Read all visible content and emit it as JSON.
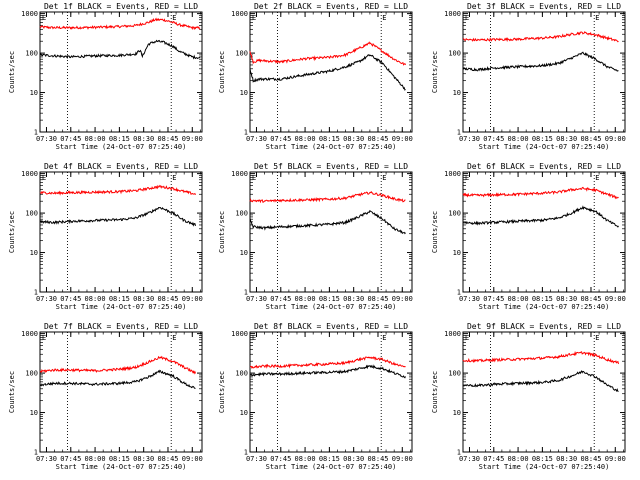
{
  "chart_data": [
    {
      "type": "line",
      "title": "Det 1f BLACK = Events, RED = LLD",
      "xlabel": "Start Time (24-Oct-07 07:25:40)",
      "ylabel": "Counts/sec",
      "x_ticks": [
        "07:30",
        "07:45",
        "08:00",
        "08:15",
        "08:30",
        "08:45",
        "09:00"
      ],
      "y_ticks": [
        "1",
        "10",
        "100",
        "1000"
      ],
      "ylim": [
        1,
        1100
      ],
      "yscale": "log",
      "annotation": "E",
      "vlines": [
        "07:43",
        "08:47"
      ],
      "series": [
        {
          "name": "LLD",
          "color": "#ff0000",
          "x": [
            "07:26",
            "07:35",
            "07:45",
            "08:00",
            "08:15",
            "08:25",
            "08:33",
            "08:37",
            "08:42",
            "08:48",
            "08:52",
            "09:00",
            "09:05"
          ],
          "y": [
            460,
            440,
            440,
            450,
            470,
            500,
            600,
            700,
            700,
            600,
            520,
            440,
            430
          ]
        },
        {
          "name": "Events",
          "color": "#000000",
          "x": [
            "07:26",
            "07:35",
            "07:45",
            "08:00",
            "08:15",
            "08:25",
            "08:28",
            "08:29",
            "08:33",
            "08:38",
            "08:42",
            "08:48",
            "08:52",
            "09:00",
            "09:05"
          ],
          "y": [
            90,
            85,
            80,
            85,
            88,
            95,
            120,
            80,
            170,
            200,
            190,
            150,
            110,
            80,
            75
          ]
        }
      ]
    },
    {
      "type": "line",
      "title": "Det 2f BLACK = Events, RED = LLD",
      "xlabel": "Start Time (24-Oct-07 07:25:40)",
      "ylabel": "Counts/sec",
      "x_ticks": [
        "07:30",
        "07:45",
        "08:00",
        "08:15",
        "08:30",
        "08:45",
        "09:00"
      ],
      "y_ticks": [
        "1",
        "10",
        "100",
        "1000"
      ],
      "ylim": [
        1,
        1100
      ],
      "yscale": "log",
      "annotation": "E",
      "vlines": [
        "07:43",
        "08:47"
      ],
      "series": [
        {
          "name": "LLD",
          "color": "#ff0000",
          "x": [
            "07:26",
            "07:28",
            "07:32",
            "07:45",
            "08:00",
            "08:15",
            "08:25",
            "08:33",
            "08:40",
            "08:48",
            "08:55",
            "09:02"
          ],
          "y": [
            110,
            60,
            65,
            60,
            72,
            78,
            90,
            130,
            180,
            110,
            70,
            50
          ]
        },
        {
          "name": "Events",
          "color": "#000000",
          "x": [
            "07:26",
            "07:28",
            "07:32",
            "07:45",
            "08:00",
            "08:15",
            "08:25",
            "08:33",
            "08:40",
            "08:48",
            "08:55",
            "09:02"
          ],
          "y": [
            40,
            20,
            22,
            22,
            28,
            35,
            45,
            60,
            90,
            55,
            25,
            12
          ]
        }
      ]
    },
    {
      "type": "line",
      "title": "Det 3f BLACK = Events, RED = LLD",
      "xlabel": "Start Time (24-Oct-07 07:25:40)",
      "ylabel": "Counts/sec",
      "x_ticks": [
        "07:30",
        "07:45",
        "08:00",
        "08:15",
        "08:30",
        "08:45",
        "09:00"
      ],
      "y_ticks": [
        "1",
        "10",
        "100",
        "1000"
      ],
      "ylim": [
        1,
        1100
      ],
      "yscale": "log",
      "annotation": "E",
      "vlines": [
        "07:43",
        "08:47"
      ],
      "series": [
        {
          "name": "LLD",
          "color": "#ff0000",
          "x": [
            "07:26",
            "07:35",
            "07:45",
            "08:00",
            "08:15",
            "08:25",
            "08:33",
            "08:40",
            "08:48",
            "08:55",
            "09:02"
          ],
          "y": [
            220,
            215,
            220,
            225,
            240,
            260,
            300,
            330,
            290,
            240,
            200
          ]
        },
        {
          "name": "Events",
          "color": "#000000",
          "x": [
            "07:26",
            "07:35",
            "07:45",
            "08:00",
            "08:15",
            "08:25",
            "08:33",
            "08:40",
            "08:48",
            "08:55",
            "09:02"
          ],
          "y": [
            40,
            38,
            42,
            45,
            48,
            55,
            75,
            100,
            70,
            45,
            35
          ]
        }
      ]
    },
    {
      "type": "line",
      "title": "Det 4f BLACK = Events, RED = LLD",
      "xlabel": "Start Time (24-Oct-07 07:25:40)",
      "ylabel": "Counts/sec",
      "x_ticks": [
        "07:30",
        "07:45",
        "08:00",
        "08:15",
        "08:30",
        "08:45",
        "09:00"
      ],
      "y_ticks": [
        "1",
        "10",
        "100",
        "1000"
      ],
      "ylim": [
        1,
        1100
      ],
      "yscale": "log",
      "annotation": "E",
      "vlines": [
        "07:43",
        "08:47"
      ],
      "series": [
        {
          "name": "LLD",
          "color": "#ff0000",
          "x": [
            "07:26",
            "07:35",
            "07:45",
            "08:00",
            "08:15",
            "08:25",
            "08:33",
            "08:40",
            "08:48",
            "08:55",
            "09:02"
          ],
          "y": [
            330,
            320,
            330,
            340,
            350,
            370,
            420,
            470,
            420,
            350,
            300
          ]
        },
        {
          "name": "Events",
          "color": "#000000",
          "x": [
            "07:26",
            "07:35",
            "07:45",
            "08:00",
            "08:15",
            "08:25",
            "08:33",
            "08:40",
            "08:48",
            "08:55",
            "09:02"
          ],
          "y": [
            60,
            58,
            62,
            65,
            68,
            75,
            100,
            140,
            100,
            65,
            50
          ]
        }
      ]
    },
    {
      "type": "line",
      "title": "Det 5f BLACK = Events, RED = LLD",
      "xlabel": "Start Time (24-Oct-07 07:25:40)",
      "ylabel": "Counts/sec",
      "x_ticks": [
        "07:30",
        "07:45",
        "08:00",
        "08:15",
        "08:30",
        "08:45",
        "09:00"
      ],
      "y_ticks": [
        "1",
        "10",
        "100",
        "1000"
      ],
      "ylim": [
        1,
        1100
      ],
      "yscale": "log",
      "annotation": "E",
      "vlines": [
        "07:43",
        "08:47"
      ],
      "series": [
        {
          "name": "LLD",
          "color": "#ff0000",
          "x": [
            "07:26",
            "07:35",
            "07:45",
            "08:00",
            "08:15",
            "08:25",
            "08:33",
            "08:40",
            "08:48",
            "08:55",
            "09:02"
          ],
          "y": [
            210,
            200,
            210,
            215,
            225,
            240,
            290,
            330,
            280,
            230,
            200
          ]
        },
        {
          "name": "Events",
          "color": "#000000",
          "x": [
            "07:26",
            "07:28",
            "07:35",
            "07:45",
            "08:00",
            "08:15",
            "08:25",
            "08:33",
            "08:40",
            "08:48",
            "08:55",
            "09:02"
          ],
          "y": [
            70,
            45,
            42,
            45,
            48,
            52,
            58,
            80,
            110,
            70,
            40,
            30
          ]
        }
      ]
    },
    {
      "type": "line",
      "title": "Det 6f BLACK = Events, RED = LLD",
      "xlabel": "Start Time (24-Oct-07 07:25:40)",
      "ylabel": "Counts/sec",
      "x_ticks": [
        "07:30",
        "07:45",
        "08:00",
        "08:15",
        "08:30",
        "08:45",
        "09:00"
      ],
      "y_ticks": [
        "1",
        "10",
        "100",
        "1000"
      ],
      "ylim": [
        1,
        1100
      ],
      "yscale": "log",
      "annotation": "E",
      "vlines": [
        "07:43",
        "08:47"
      ],
      "series": [
        {
          "name": "LLD",
          "color": "#ff0000",
          "x": [
            "07:26",
            "07:35",
            "07:45",
            "08:00",
            "08:15",
            "08:25",
            "08:33",
            "08:40",
            "08:48",
            "08:55",
            "09:02"
          ],
          "y": [
            290,
            280,
            290,
            300,
            320,
            340,
            390,
            420,
            380,
            300,
            240
          ]
        },
        {
          "name": "Events",
          "color": "#000000",
          "x": [
            "07:26",
            "07:35",
            "07:45",
            "08:00",
            "08:15",
            "08:25",
            "08:33",
            "08:40",
            "08:48",
            "08:55",
            "09:02"
          ],
          "y": [
            58,
            55,
            58,
            62,
            66,
            75,
            100,
            140,
            110,
            65,
            45
          ]
        }
      ]
    },
    {
      "type": "line",
      "title": "Det 7f BLACK = Events, RED = LLD",
      "xlabel": "Start Time (24-Oct-07 07:25:40)",
      "ylabel": "Counts/sec",
      "x_ticks": [
        "07:30",
        "07:45",
        "08:00",
        "08:15",
        "08:30",
        "08:45",
        "09:00"
      ],
      "y_ticks": [
        "1",
        "10",
        "100",
        "1000"
      ],
      "ylim": [
        1,
        1100
      ],
      "yscale": "log",
      "annotation": "E",
      "vlines": [
        "07:43",
        "08:47"
      ],
      "series": [
        {
          "name": "LLD",
          "color": "#ff0000",
          "x": [
            "07:26",
            "07:35",
            "07:45",
            "08:00",
            "08:15",
            "08:25",
            "08:33",
            "08:40",
            "08:48",
            "08:55",
            "09:02"
          ],
          "y": [
            110,
            120,
            120,
            115,
            125,
            140,
            190,
            250,
            200,
            140,
            100
          ]
        },
        {
          "name": "Events",
          "color": "#000000",
          "x": [
            "07:26",
            "07:35",
            "07:45",
            "08:00",
            "08:15",
            "08:25",
            "08:33",
            "08:40",
            "08:48",
            "08:55",
            "09:02"
          ],
          "y": [
            50,
            55,
            55,
            52,
            55,
            60,
            80,
            110,
            85,
            55,
            40
          ]
        }
      ]
    },
    {
      "type": "line",
      "title": "Det 8f BLACK = Events, RED = LLD",
      "xlabel": "Start Time (24-Oct-07 07:25:40)",
      "ylabel": "Counts/sec",
      "x_ticks": [
        "07:30",
        "07:45",
        "08:00",
        "08:15",
        "08:30",
        "08:45",
        "09:00"
      ],
      "y_ticks": [
        "1",
        "10",
        "100",
        "1000"
      ],
      "ylim": [
        1,
        1100
      ],
      "yscale": "log",
      "annotation": "E",
      "vlines": [
        "07:43",
        "08:47"
      ],
      "series": [
        {
          "name": "LLD",
          "color": "#ff0000",
          "x": [
            "07:26",
            "07:35",
            "07:45",
            "08:00",
            "08:15",
            "08:25",
            "08:33",
            "08:40",
            "08:48",
            "08:55",
            "09:02"
          ],
          "y": [
            140,
            150,
            150,
            160,
            170,
            180,
            220,
            250,
            220,
            170,
            140
          ]
        },
        {
          "name": "Events",
          "color": "#000000",
          "x": [
            "07:26",
            "07:35",
            "07:45",
            "08:00",
            "08:15",
            "08:25",
            "08:33",
            "08:40",
            "08:48",
            "08:55",
            "09:02"
          ],
          "y": [
            90,
            95,
            95,
            100,
            105,
            110,
            130,
            150,
            130,
            100,
            80
          ]
        }
      ]
    },
    {
      "type": "line",
      "title": "Det 9f BLACK = Events, RED = LLD",
      "xlabel": "Start Time (24-Oct-07 07:25:40)",
      "ylabel": "Counts/sec",
      "x_ticks": [
        "07:30",
        "07:45",
        "08:00",
        "08:15",
        "08:30",
        "08:45",
        "09:00"
      ],
      "y_ticks": [
        "1",
        "10",
        "100",
        "1000"
      ],
      "ylim": [
        1,
        1100
      ],
      "yscale": "log",
      "annotation": "E",
      "vlines": [
        "07:43",
        "08:47"
      ],
      "series": [
        {
          "name": "LLD",
          "color": "#ff0000",
          "x": [
            "07:26",
            "07:35",
            "07:45",
            "08:00",
            "08:15",
            "08:25",
            "08:33",
            "08:40",
            "08:48",
            "08:55",
            "09:02"
          ],
          "y": [
            210,
            205,
            215,
            225,
            240,
            260,
            300,
            330,
            280,
            220,
            180
          ]
        },
        {
          "name": "Events",
          "color": "#000000",
          "x": [
            "07:26",
            "07:35",
            "07:45",
            "08:00",
            "08:15",
            "08:25",
            "08:33",
            "08:40",
            "08:48",
            "08:55",
            "09:02"
          ],
          "y": [
            50,
            48,
            52,
            55,
            58,
            65,
            85,
            110,
            80,
            50,
            35
          ]
        }
      ]
    }
  ]
}
